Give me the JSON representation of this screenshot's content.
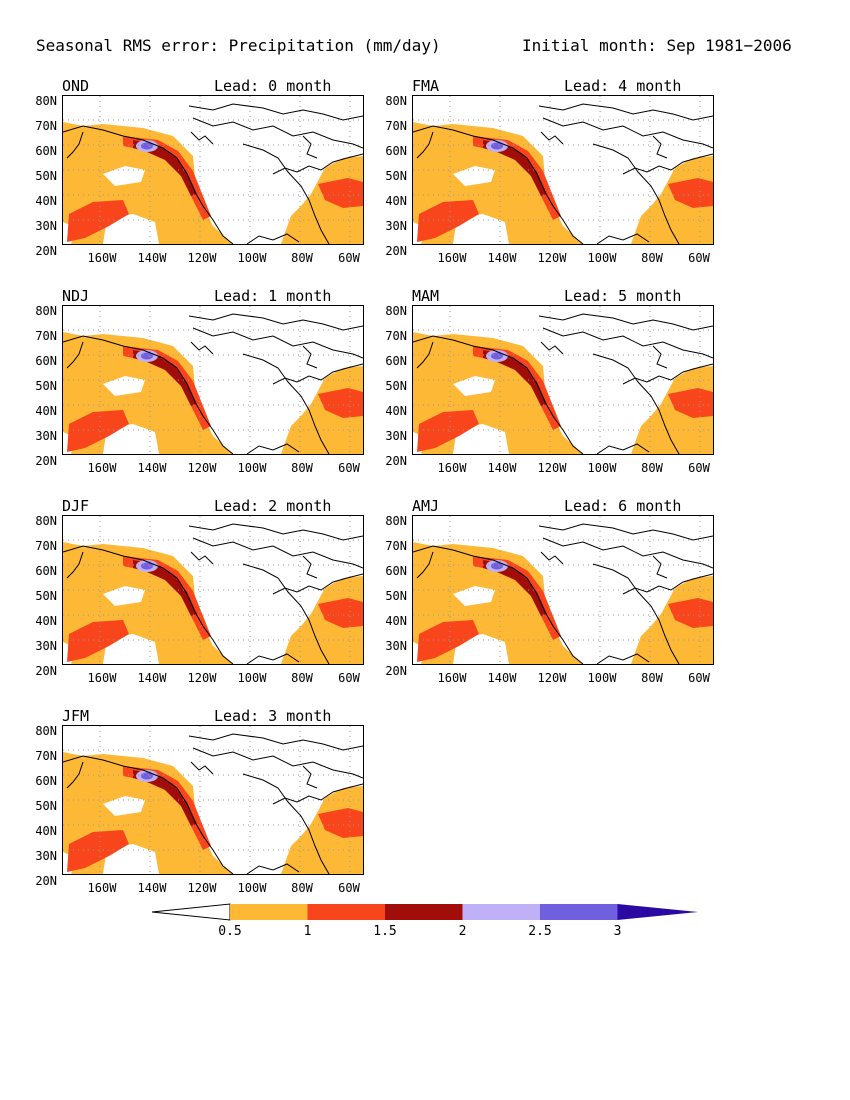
{
  "header": {
    "title": "Seasonal RMS error: Precipitation (mm/day)",
    "initial": "Initial month: Sep 1981−2006"
  },
  "axes": {
    "lat_labels": [
      "80N",
      "70N",
      "60N",
      "50N",
      "40N",
      "30N",
      "20N"
    ],
    "lon_labels": [
      "160W",
      "140W",
      "120W",
      "100W",
      "80W",
      "60W"
    ]
  },
  "panels": [
    {
      "season": "OND",
      "lead": "Lead: 0 month"
    },
    {
      "season": "FMA",
      "lead": "Lead: 4 month"
    },
    {
      "season": "NDJ",
      "lead": "Lead: 1 month"
    },
    {
      "season": "MAM",
      "lead": "Lead: 5 month"
    },
    {
      "season": "DJF",
      "lead": "Lead: 2 month"
    },
    {
      "season": "AMJ",
      "lead": "Lead: 6 month"
    },
    {
      "season": "JFM",
      "lead": "Lead: 3 month"
    }
  ],
  "colorbar": {
    "labels": [
      "0.5",
      "1",
      "1.5",
      "2",
      "2.5",
      "3"
    ],
    "colors": [
      "#ffffff",
      "#fdb836",
      "#f9451b",
      "#a10e0a",
      "#c0b0f8",
      "#7060e0",
      "#2a0aa0"
    ]
  }
}
